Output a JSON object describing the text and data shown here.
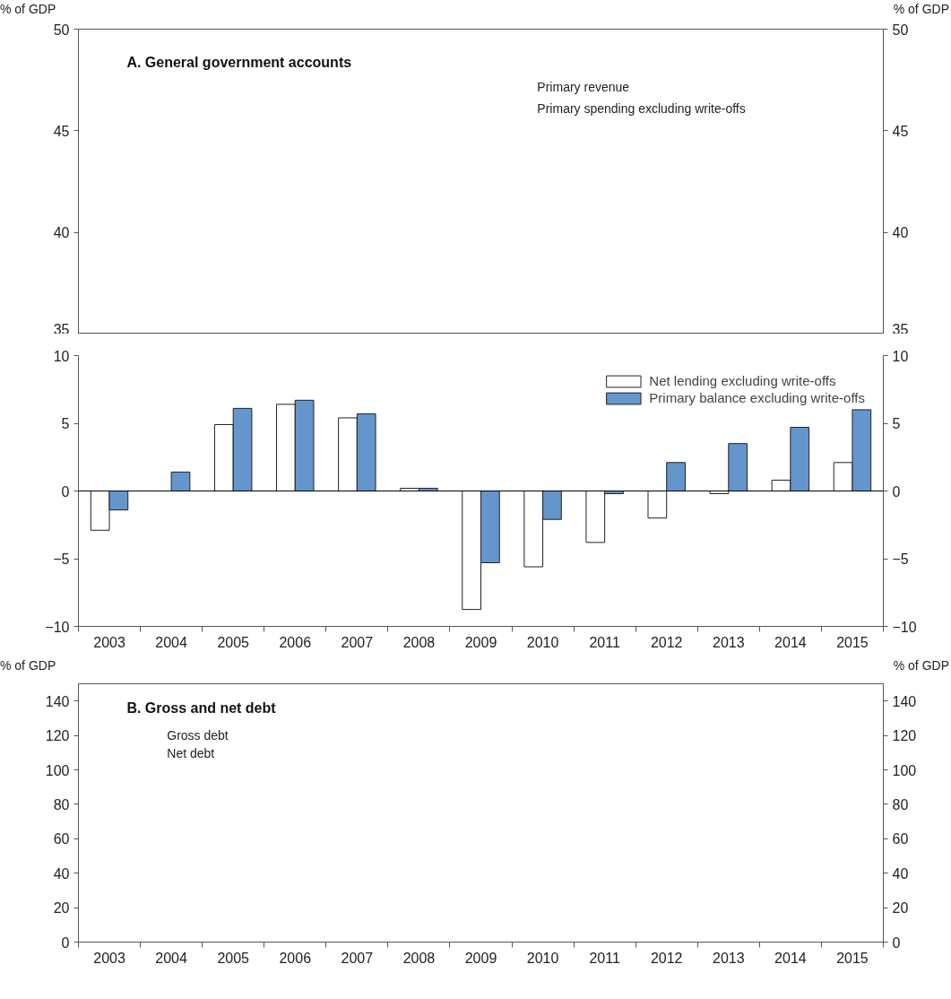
{
  "chart_data": [
    {
      "type": "line",
      "title": "A. General government accounts",
      "ylabel": "% of GDP",
      "y2label": "% of GDP",
      "categories": [
        "2003",
        "2004",
        "2005",
        "2006",
        "2007",
        "2008",
        "2009",
        "2010",
        "2011",
        "2012",
        "2013",
        "2014",
        "2015"
      ],
      "series": [
        {
          "name": "Primary revenue",
          "values": [
            null,
            null,
            null,
            null,
            null,
            null,
            null,
            null,
            null,
            null,
            null,
            null,
            null
          ]
        },
        {
          "name": "Primary spending excluding write-offs",
          "values": [
            null,
            null,
            null,
            null,
            null,
            null,
            null,
            null,
            null,
            null,
            null,
            null,
            null
          ]
        }
      ],
      "ylim": [
        35,
        50
      ],
      "yticks": [
        35,
        40,
        45,
        50
      ],
      "y2lim": [
        35,
        50
      ],
      "y2ticks": [
        35,
        40,
        45,
        50
      ],
      "tick_labels": "y"
    },
    {
      "type": "bar",
      "categories": [
        "2003",
        "2004",
        "2005",
        "2006",
        "2007",
        "2008",
        "2009",
        "2010",
        "2011",
        "2012",
        "2013",
        "2014",
        "2015"
      ],
      "series": [
        {
          "name": "Net lending excluding write-offs",
          "color": "#ffffff",
          "values": [
            -2.9,
            null,
            4.9,
            6.4,
            5.4,
            0.2,
            -8.75,
            -5.6,
            -3.8,
            -2.0,
            -0.2,
            0.8,
            2.1
          ]
        },
        {
          "name": "Primary balance excluding write-offs",
          "color": "#6495cd",
          "values": [
            -1.4,
            1.4,
            6.1,
            6.7,
            5.7,
            0.2,
            -5.3,
            -2.1,
            -0.2,
            2.1,
            3.5,
            4.7,
            6.0
          ]
        }
      ],
      "ylim": [
        -10,
        10
      ],
      "yticks": [
        -10,
        -5,
        0,
        5,
        10
      ],
      "y2lim": [
        -10,
        10
      ],
      "y2ticks": [
        -10,
        -5,
        0,
        5,
        10
      ],
      "ref_lines": [
        {
          "axis": "y",
          "value": 0,
          "color": "#000000"
        }
      ],
      "legend": "top right"
    },
    {
      "type": "line",
      "title": "B. Gross and net debt",
      "ylabel": "% of GDP",
      "y2label": "% of GDP",
      "categories": [
        "2003",
        "2004",
        "2005",
        "2006",
        "2007",
        "2008",
        "2009",
        "2010",
        "2011",
        "2012",
        "2013",
        "2014",
        "2015"
      ],
      "series": [
        {
          "name": "Gross debt",
          "values": [
            null,
            null,
            null,
            null,
            null,
            null,
            null,
            null,
            null,
            null,
            null,
            null,
            null
          ]
        },
        {
          "name": "Net debt",
          "values": [
            null,
            null,
            null,
            null,
            null,
            null,
            null,
            null,
            null,
            null,
            null,
            null,
            null
          ]
        }
      ],
      "ylim": [
        0,
        150
      ],
      "yticks": [
        0,
        20,
        40,
        60,
        80,
        100,
        120,
        140
      ],
      "y2lim": [
        0,
        150
      ],
      "y2ticks": [
        0,
        20,
        40,
        60,
        80,
        100,
        120,
        140
      ]
    }
  ]
}
